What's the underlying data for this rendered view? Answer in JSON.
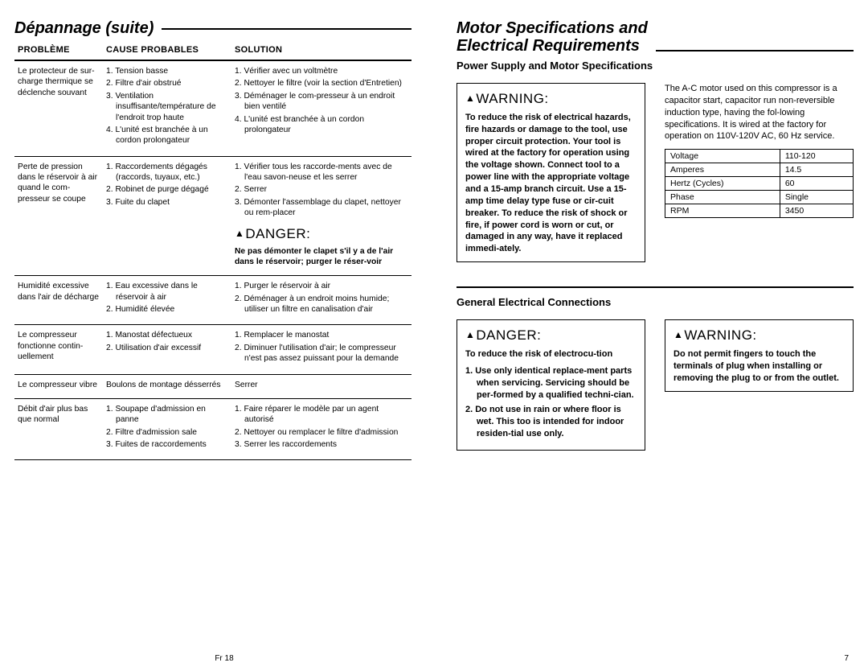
{
  "left": {
    "heading": "Dépannage (suite)",
    "table": {
      "headers": [
        "Problème",
        "Cause Probables",
        "Solution"
      ],
      "rows": [
        {
          "problem": "Le protecteur de sur-charge thermique se déclenche souvant",
          "causes": [
            "Tension basse",
            "Filtre d'air obstrué",
            "Ventilation insuffisante/température de l'endroit trop haute",
            "L'unité est branchée à un cordon prolongateur"
          ],
          "solutions": [
            "Vérifier avec un voltmètre",
            "Nettoyer le filtre (voir la section d'Entretien)",
            "Déménager le com-presseur à un endroit bien ventilé",
            "L'unité est branchée à un cordon prolongateur"
          ]
        },
        {
          "problem": "Perte de pression dans le réservoir à air quand le com-presseur se coupe",
          "causes": [
            "Raccordements dégagés (raccords, tuyaux, etc.)",
            "Robinet de purge dégagé",
            "Fuite du clapet"
          ],
          "solutions": [
            "Vérifier tous les raccorde-ments avec de l'eau savon-neuse et les serrer",
            "Serrer",
            "Démonter l'assemblage du clapet, nettoyer ou rem-placer"
          ],
          "danger_label": "DANGER:",
          "danger_text": "Ne pas démonter le clapet s'il y a de l'air dans le réservoir; purger le réser-voir"
        },
        {
          "problem": "Humidité excessive dans l'air de décharge",
          "causes": [
            "Eau excessive dans le réservoir à air",
            "Humidité élevée"
          ],
          "solutions": [
            "Purger le réservoir à air",
            "Déménager à un endroit moins humide; utiliser un filtre en canalisation d'air"
          ]
        },
        {
          "problem": "Le compresseur fonctionne contin-uellement",
          "causes": [
            "Manostat défectueux",
            "Utilisation d'air excessif"
          ],
          "solutions": [
            "Remplacer le manostat",
            "Diminuer l'utilisation d'air; le compresseur n'est pas assez puissant pour la demande"
          ]
        },
        {
          "problem": "Le compresseur vibre",
          "causes_plain": "Boulons de montage désserrés",
          "solutions_plain": "Serrer"
        },
        {
          "problem": "Débit d'air plus bas que normal",
          "causes": [
            "Soupape d'admission en panne",
            "Filtre d'admission sale",
            "Fuites de raccordements"
          ],
          "solutions": [
            "Faire réparer le modèle par un agent autorisé",
            "Nettoyer ou remplacer le filtre d'admission",
            "Serrer les raccordements"
          ]
        }
      ]
    },
    "page_num": "Fr 18"
  },
  "right": {
    "heading": "Motor Specifications and\nElectrical Requirements",
    "sub1": "Power Supply and Motor Specifications",
    "warn1_label": "WARNING:",
    "warn1_text": "To reduce the risk of electrical hazards, fire hazards or damage to the tool, use proper circuit protection. Your tool is wired at the factory for operation using the voltage shown. Connect tool to a power line with the appropriate voltage and a 15-amp branch circuit. Use a 15-amp time delay type fuse or cir-cuit breaker. To reduce the risk of shock or fire, if power cord is worn or cut, or damaged in any way, have it replaced immedi-ately.",
    "motor_para": "The A-C motor used on this compressor is a capacitor start, capacitor run non-reversible induction type, having the fol-lowing specifications. It is wired at the factory for operation on 110V-120V AC, 60 Hz service.",
    "specs": [
      [
        "Voltage",
        "110-120"
      ],
      [
        "Amperes",
        "14.5"
      ],
      [
        "Hertz (Cycles)",
        "60"
      ],
      [
        "Phase",
        "Single"
      ],
      [
        "RPM",
        "3450"
      ]
    ],
    "sub2": "General Electrical Connections",
    "danger2_label": "DANGER:",
    "danger2_intro": "To reduce the risk of electrocu-tion",
    "danger2_items": [
      "Use only identical replace-ment parts when servicing. Servicing should be per-formed by a qualified techni-cian.",
      "Do not use in rain or where floor is wet. This too is intended for indoor residen-tial use only."
    ],
    "warn2_label": "WARNING:",
    "warn2_text": "Do not permit fingers to touch the terminals of plug when installing or removing the plug to or from the outlet.",
    "page_num": "7"
  }
}
